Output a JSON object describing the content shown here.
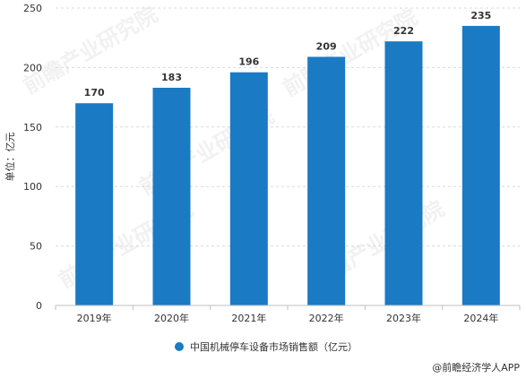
{
  "chart_data": {
    "type": "bar",
    "categories": [
      "2019年",
      "2020年",
      "2021年",
      "2022年",
      "2023年",
      "2024年"
    ],
    "series": [
      {
        "name": "中国机械停车设备市场销售额（亿元）",
        "values": [
          170,
          183,
          196,
          209,
          222,
          235
        ]
      }
    ],
    "ylabel": "单位：亿元",
    "xlabel": "",
    "ylim": [
      0,
      250
    ],
    "yticks": [
      0,
      50,
      100,
      150,
      200,
      250
    ],
    "grid": true,
    "legend_position": "bottom-center",
    "data_labels": true
  },
  "colors": {
    "bar": "#1a7ac4",
    "grid": "#d9d9d9",
    "axis": "#bfbfbf"
  },
  "credit": "@前瞻经济学人APP",
  "watermark": "前瞻产业研究院",
  "icons": {
    "legend_marker": "circle-icon"
  }
}
